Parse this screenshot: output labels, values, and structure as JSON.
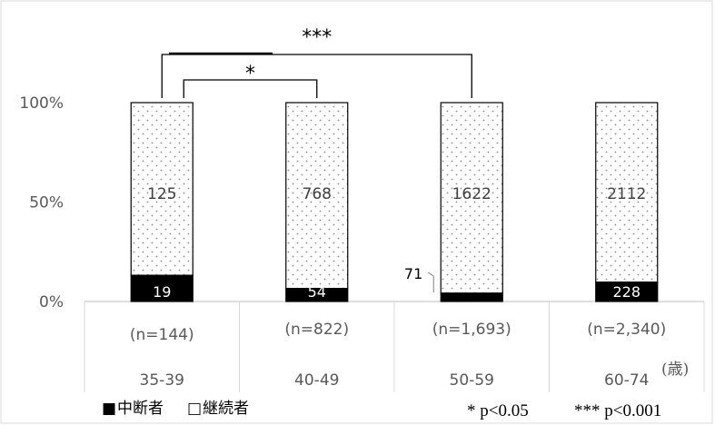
{
  "chart_data": {
    "type": "bar",
    "stacked": "percent",
    "categories": [
      "35-39",
      "40-49",
      "50-59",
      "60-74"
    ],
    "category_counts": [
      "(n=144)",
      "(n=822)",
      "(n=1,693)",
      "(n=2,340)"
    ],
    "series": [
      {
        "name": "中断者",
        "values": [
          19,
          54,
          71,
          228
        ],
        "color": "#000000"
      },
      {
        "name": "継続者",
        "values": [
          125,
          768,
          1622,
          2112
        ],
        "color": "#ffffff",
        "pattern": "dotted"
      }
    ],
    "y_ticks": [
      "0%",
      "50%",
      "100%"
    ],
    "ylim": [
      0,
      100
    ],
    "x_unit": "(歳)",
    "legend": {
      "position": "bottom-left",
      "items": [
        {
          "symbol": "■",
          "label": "中断者"
        },
        {
          "symbol": "□",
          "label": "継続者"
        }
      ]
    },
    "significance": [
      {
        "from": 0,
        "to": 1,
        "mark": "*"
      },
      {
        "from": 0,
        "to": 2,
        "mark": "***"
      }
    ],
    "p_notes": [
      "* p<0.05",
      "*** p<0.001"
    ],
    "callout": {
      "category": 2,
      "series": 0,
      "label": "71"
    }
  }
}
